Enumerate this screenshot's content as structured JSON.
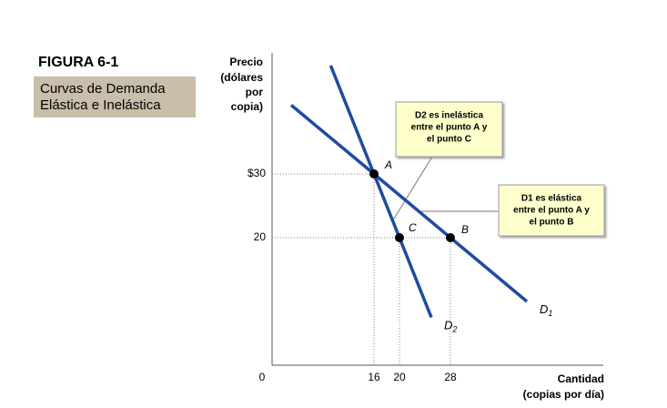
{
  "chart_data": {
    "type": "line",
    "title": "FIGURA 6-1",
    "subtitle_lines": [
      "Curvas de Demanda",
      "Elástica e Inelástica"
    ],
    "ylabel_lines": [
      "Precio",
      "(dólares",
      "por",
      "copia)"
    ],
    "xlabel_lines": [
      "Cantidad",
      "(copias por  día)"
    ],
    "xlim": [
      0,
      52
    ],
    "ylim": [
      0,
      49
    ],
    "xticks": [
      0,
      16,
      20,
      28
    ],
    "yticks": [
      20,
      {
        "value": 30,
        "label": "$30"
      }
    ],
    "series": [
      {
        "name": "D1",
        "color": "#1f4c9e",
        "x": [
          3,
          16,
          28,
          40
        ],
        "values": [
          40.8,
          30,
          20,
          10
        ]
      },
      {
        "name": "D2",
        "color": "#1f4c9e",
        "x": [
          9.2,
          16,
          20,
          25
        ],
        "values": [
          47,
          30,
          20,
          7.5
        ]
      }
    ],
    "points": [
      {
        "label": "A",
        "x": 16,
        "y": 30
      },
      {
        "label": "B",
        "x": 28,
        "y": 20
      },
      {
        "label": "C",
        "x": 20,
        "y": 20
      }
    ],
    "annotations": [
      {
        "lines": [
          "D2 es inelástica",
          "entre el punto A y",
          "el punto C"
        ]
      },
      {
        "lines": [
          "D1 es elástica",
          "entre el punto A y",
          "el punto B"
        ]
      }
    ]
  }
}
